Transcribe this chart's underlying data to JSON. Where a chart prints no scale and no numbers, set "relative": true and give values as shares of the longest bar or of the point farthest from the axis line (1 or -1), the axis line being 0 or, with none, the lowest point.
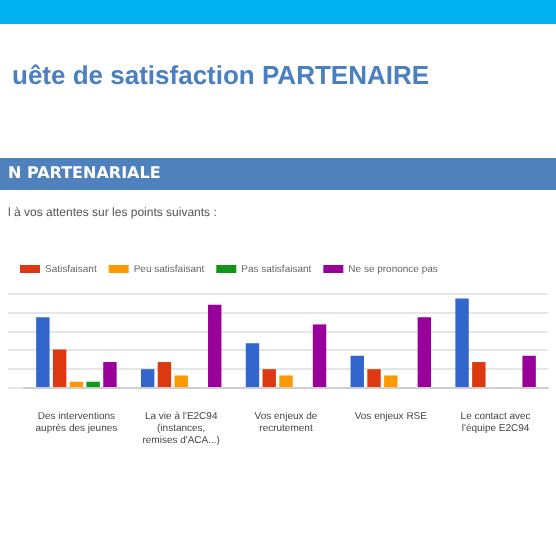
{
  "chart_data": {
    "type": "bar",
    "title": "uête de satisfaction PARTENAIRE",
    "subtitle": "l à vos attentes sur les points suivants :",
    "annotations": [
      "N PARTENARIALE"
    ],
    "categories": [
      "Des interventions auprès des jeunes",
      "La vie à l'E2C94 (instances, remises d'ACA...)",
      "Vos enjeux de recrutement",
      "Vos enjeux RSE",
      "Le contact avec l'équipe E2C94"
    ],
    "relative": true,
    "grid": "y",
    "legend": "top left",
    "series": [
      {
        "color": "#3366cc",
        "values": [
          0.79,
          0.21,
          0.5,
          0.36,
          1
        ]
      },
      {
        "name": "Satisfaisant",
        "color": "#dc3912",
        "values": [
          0.43,
          0.29,
          0.21,
          0.21,
          0.29
        ]
      },
      {
        "name": "Peu satisfaisant",
        "color": "#ff9900",
        "values": [
          0.07,
          0.14,
          0.14,
          0.14,
          0
        ]
      },
      {
        "name": "Pas satisfaisant",
        "color": "#109618",
        "values": [
          0.07,
          0,
          0,
          0,
          0
        ]
      },
      {
        "name": "Ne se prononce pas",
        "color": "#990099",
        "values": [
          0.29,
          0.93,
          0.71,
          0.79,
          0.36
        ]
      }
    ]
  }
}
